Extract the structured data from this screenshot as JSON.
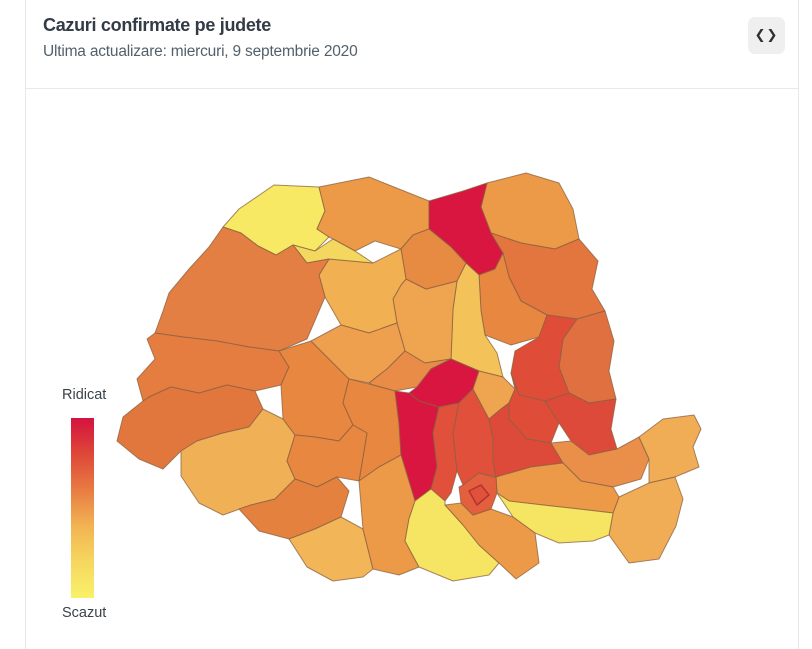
{
  "header": {
    "title": "Cazuri confirmate pe judete",
    "subtitle": "Ultima actualizare: miercuri, 9 septembrie 2020",
    "embed_icon": "❮❯"
  },
  "legend": {
    "high_label": "Ridicat",
    "low_label": "Scazut",
    "gradient": [
      "#d5123f",
      "#de4738",
      "#e87c43",
      "#f2b352",
      "#f6d75f",
      "#f9f169"
    ]
  },
  "colors": {
    "card_border": "#e8e8eb",
    "title_text": "#333b46",
    "subtitle_text": "#53606b",
    "button_background": "#efeff0",
    "button_glyph": "#2f2f2f",
    "county_border": "#8a6040",
    "bucharest_border": "#b03030"
  },
  "chart_data": {
    "type": "heatmap",
    "title": "Cazuri confirmate pe judete",
    "subtitle": "Ultima actualizare: miercuri, 9 septembrie 2020",
    "legend": {
      "high": "Ridicat",
      "low": "Scazut"
    },
    "regions": [
      {
        "id": "satu-mare",
        "color": "#f7e964"
      },
      {
        "id": "maramures",
        "color": "#ec9a48"
      },
      {
        "id": "botosani",
        "color": "#ec9a48"
      },
      {
        "id": "suceava",
        "color": "#d8163f"
      },
      {
        "id": "iasi",
        "color": "#e3753f"
      },
      {
        "id": "neamt",
        "color": "#e8873f"
      },
      {
        "id": "vaslui",
        "color": "#e17040"
      },
      {
        "id": "bacau",
        "color": "#df4d39"
      },
      {
        "id": "harghita",
        "color": "#f3c35a"
      },
      {
        "id": "mures",
        "color": "#efa450"
      },
      {
        "id": "bistrita-nasaud",
        "color": "#e78a42"
      },
      {
        "id": "cluj",
        "color": "#f1b052"
      },
      {
        "id": "salaj",
        "color": "#f4d75f"
      },
      {
        "id": "bihor",
        "color": "#e37f42"
      },
      {
        "id": "arad",
        "color": "#e57d40"
      },
      {
        "id": "timis",
        "color": "#e2773e"
      },
      {
        "id": "caras-severin",
        "color": "#f0b056"
      },
      {
        "id": "hunedoara",
        "color": "#e8873f"
      },
      {
        "id": "alba",
        "color": "#eea04e"
      },
      {
        "id": "sibiu",
        "color": "#e88c48"
      },
      {
        "id": "brasov",
        "color": "#d8163f"
      },
      {
        "id": "valcea",
        "color": "#e8873f"
      },
      {
        "id": "gorj",
        "color": "#e8873f"
      },
      {
        "id": "arges",
        "color": "#d8163f"
      },
      {
        "id": "dambovita",
        "color": "#e0503a"
      },
      {
        "id": "prahova",
        "color": "#e0503a"
      },
      {
        "id": "covasna",
        "color": "#efa450"
      },
      {
        "id": "vrancea",
        "color": "#df4d39"
      },
      {
        "id": "buzau",
        "color": "#de4a39"
      },
      {
        "id": "galati",
        "color": "#de4a39"
      },
      {
        "id": "braila",
        "color": "#ea8f4a"
      },
      {
        "id": "tulcea",
        "color": "#f0ad55"
      },
      {
        "id": "constanta",
        "color": "#f0ad55"
      },
      {
        "id": "ialomita",
        "color": "#ec9a48"
      },
      {
        "id": "calarasi",
        "color": "#f6e463"
      },
      {
        "id": "mehedinti",
        "color": "#e5813f"
      },
      {
        "id": "dolj",
        "color": "#f2b558"
      },
      {
        "id": "olt",
        "color": "#ec9a48"
      },
      {
        "id": "teleorman",
        "color": "#f6e463"
      },
      {
        "id": "giurgiu",
        "color": "#ec9a48"
      },
      {
        "id": "ilfov",
        "color": "#e35f3d"
      },
      {
        "id": "bucuresti",
        "color": "#e0533a"
      }
    ]
  }
}
